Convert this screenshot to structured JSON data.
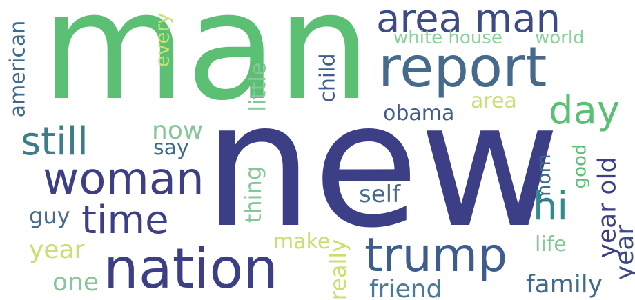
{
  "colors": {
    "background": "#ffffff",
    "green": "#5bbf74",
    "navy": "#3c3f86",
    "blue": "#3e5c8c",
    "teal": "#2f8c8c",
    "lime": "#c8e06e",
    "sage": "#86c79a",
    "slate": "#4a6a8a"
  },
  "words": [
    {
      "text": "man",
      "color": "#5bbf74"
    },
    {
      "text": "new",
      "color": "#3c3f86"
    },
    {
      "text": "area man",
      "color": "#3c4a86"
    },
    {
      "text": "report",
      "color": "#456a8c"
    },
    {
      "text": "woman",
      "color": "#3c3f86"
    },
    {
      "text": "nation",
      "color": "#3c3f86"
    },
    {
      "text": "trump",
      "color": "#3e5c8c"
    },
    {
      "text": "still",
      "color": "#3e7c8c"
    },
    {
      "text": "time",
      "color": "#3c3f86"
    },
    {
      "text": "day",
      "color": "#5bbf74"
    },
    {
      "text": "hi",
      "color": "#2f8c8c"
    },
    {
      "text": "white house",
      "color": "#8ccf9c"
    },
    {
      "text": "world",
      "color": "#8ccf9c"
    },
    {
      "text": "obama",
      "color": "#3e5c8c"
    },
    {
      "text": "area",
      "color": "#c8e06e"
    },
    {
      "text": "now",
      "color": "#86c79a"
    },
    {
      "text": "say",
      "color": "#3e6a8c"
    },
    {
      "text": "self",
      "color": "#4a6a8a"
    },
    {
      "text": "guy",
      "color": "#4a6a8a"
    },
    {
      "text": "make",
      "color": "#c8e06e"
    },
    {
      "text": "year",
      "color": "#c8e06e"
    },
    {
      "text": "one",
      "color": "#86c79a"
    },
    {
      "text": "friend",
      "color": "#4a7a9a"
    },
    {
      "text": "family",
      "color": "#3e6a8c"
    },
    {
      "text": "life",
      "color": "#86c79a"
    },
    {
      "text": "american",
      "color": "#3e6a8c"
    },
    {
      "text": "every",
      "color": "#c8e06e"
    },
    {
      "text": "little",
      "color": "#86c79a"
    },
    {
      "text": "child",
      "color": "#3e5c8c"
    },
    {
      "text": "thing",
      "color": "#86c79a"
    },
    {
      "text": "mom",
      "color": "#3e6a8c"
    },
    {
      "text": "good",
      "color": "#5bbf74"
    },
    {
      "text": "year old",
      "color": "#3c3f86"
    },
    {
      "text": "year",
      "color": "#3c4a86"
    },
    {
      "text": "really",
      "color": "#c8e06e"
    }
  ]
}
